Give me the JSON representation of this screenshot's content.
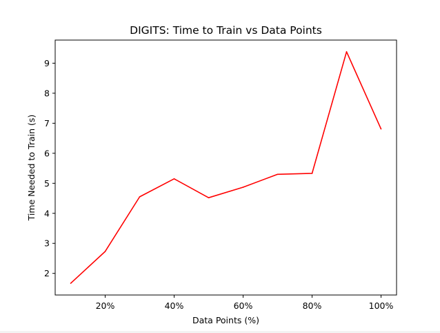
{
  "chart_data": {
    "type": "line",
    "title": "DIGITS: Time to Train vs Data Points",
    "xlabel": "Data Points (%)",
    "ylabel": "Time Needed to Train (s)",
    "x": [
      10,
      20,
      30,
      40,
      50,
      60,
      70,
      80,
      90,
      100
    ],
    "series": [
      {
        "values": [
          1.67,
          2.73,
          4.55,
          5.15,
          4.52,
          4.87,
          5.3,
          5.33,
          9.38,
          6.81
        ],
        "color": "#ff0000"
      }
    ],
    "xlim": [
      5.5,
      104.5
    ],
    "ylim": [
      1.28,
      9.77
    ],
    "xticks": [
      20,
      40,
      60,
      80,
      100
    ],
    "xtick_labels": [
      "20%",
      "40%",
      "60%",
      "80%",
      "100%"
    ],
    "yticks": [
      2,
      3,
      4,
      5,
      6,
      7,
      8,
      9
    ],
    "ytick_labels": [
      "2",
      "3",
      "4",
      "5",
      "6",
      "7",
      "8",
      "9"
    ],
    "grid": false,
    "legend": "none"
  }
}
